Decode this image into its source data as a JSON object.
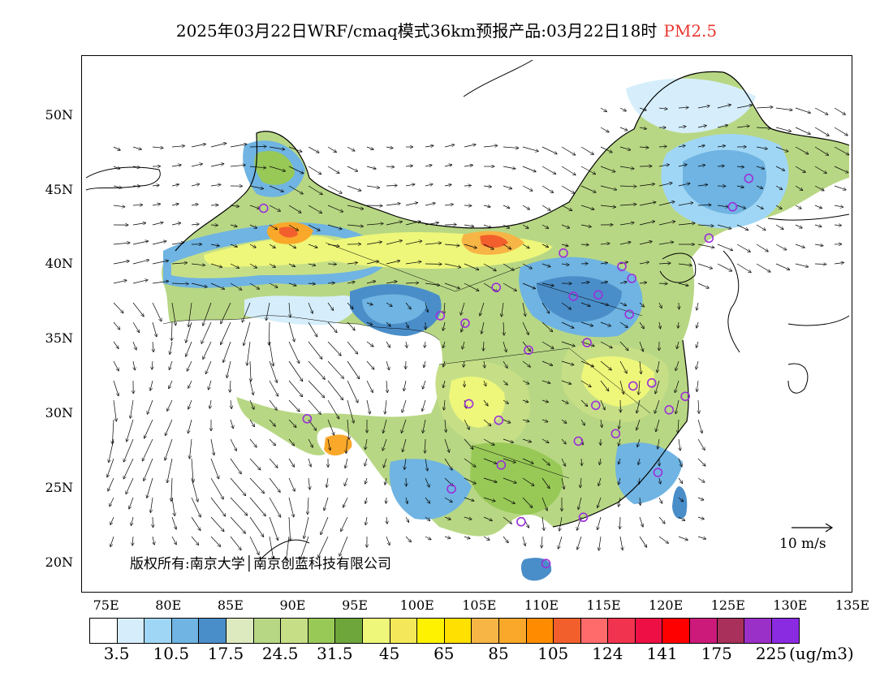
{
  "title": {
    "main": "2025年03月22日WRF/cmaq模式36km预报产品:03月22日18时",
    "variable": "PM2.5"
  },
  "map": {
    "lon_range": [
      73,
      135
    ],
    "lat_range": [
      18,
      54
    ],
    "y_ticks": [
      "20N",
      "25N",
      "30N",
      "35N",
      "40N",
      "45N",
      "50N"
    ],
    "y_tick_values": [
      20,
      25,
      30,
      35,
      40,
      45,
      50
    ],
    "x_ticks": [
      "75E",
      "80E",
      "85E",
      "90E",
      "95E",
      "100E",
      "105E",
      "110E",
      "115E",
      "120E",
      "125E",
      "130E",
      "135E"
    ],
    "x_tick_values": [
      75,
      80,
      85,
      90,
      95,
      100,
      105,
      110,
      115,
      120,
      125,
      130,
      135
    ],
    "copyright": "版权所有:南京大学│南京创蓝科技有限公司",
    "wind_reference": "10 m/s",
    "city_marker_color": "#9b30d9",
    "cities": [
      [
        87.6,
        43.8
      ],
      [
        91.1,
        29.7
      ],
      [
        101.8,
        36.6
      ],
      [
        103.8,
        36.1
      ],
      [
        106.3,
        38.5
      ],
      [
        104.1,
        30.7
      ],
      [
        106.5,
        29.6
      ],
      [
        106.7,
        26.6
      ],
      [
        102.7,
        25.0
      ],
      [
        108.3,
        22.8
      ],
      [
        110.3,
        20.0
      ],
      [
        111.7,
        40.8
      ],
      [
        112.5,
        37.9
      ],
      [
        114.5,
        38.0
      ],
      [
        116.4,
        39.9
      ],
      [
        117.2,
        39.1
      ],
      [
        117.0,
        36.7
      ],
      [
        113.6,
        34.8
      ],
      [
        108.9,
        34.3
      ],
      [
        114.3,
        30.6
      ],
      [
        112.9,
        28.2
      ],
      [
        115.9,
        28.7
      ],
      [
        113.3,
        23.1
      ],
      [
        117.3,
        31.9
      ],
      [
        118.8,
        32.1
      ],
      [
        121.5,
        31.2
      ],
      [
        120.2,
        30.3
      ],
      [
        119.3,
        26.1
      ],
      [
        123.4,
        41.8
      ],
      [
        125.3,
        43.9
      ],
      [
        126.6,
        45.8
      ]
    ]
  },
  "colorbar": {
    "unit": "(ug/m3)",
    "colors": [
      "#ffffff",
      "#d6eefb",
      "#a0d6f5",
      "#6fb4e2",
      "#4a8ec9",
      "#dde9bf",
      "#b8d784",
      "#c6df87",
      "#98c957",
      "#6ea63b",
      "#eef77a",
      "#f4e85a",
      "#fff200",
      "#ffe000",
      "#f7b545",
      "#f9a82a",
      "#ff8c00",
      "#f25f2c",
      "#ff6b6b",
      "#f2334f",
      "#ee1045",
      "#ff0000",
      "#cc1a7a",
      "#a8305a",
      "#9b30c8",
      "#8a2be2"
    ],
    "labels": [
      "3.5",
      "10.5",
      "17.5",
      "24.5",
      "31.5",
      "45",
      "65",
      "85",
      "105",
      "124",
      "141",
      "175",
      "225"
    ]
  }
}
